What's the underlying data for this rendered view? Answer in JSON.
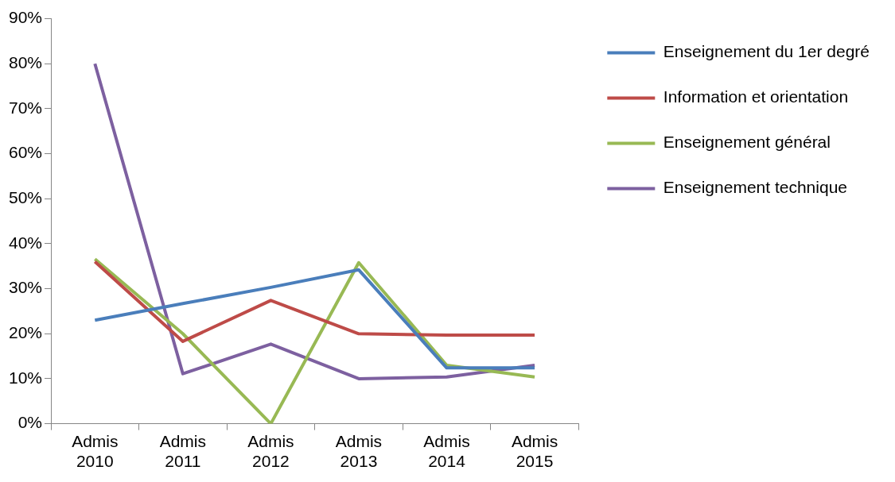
{
  "chart_data": {
    "type": "line",
    "categories": [
      "Admis 2010",
      "Admis 2011",
      "Admis 2012",
      "Admis 2013",
      "Admis 2014",
      "Admis 2015"
    ],
    "series": [
      {
        "name": "Enseignement du 1er degré",
        "color": "#4a7ebb",
        "values": [
          23,
          26.7,
          30.3,
          34.2,
          12.4,
          12.4
        ]
      },
      {
        "name": "Information et orientation",
        "color": "#be4b48",
        "values": [
          36,
          18.3,
          27.4,
          20,
          19.7,
          19.7
        ]
      },
      {
        "name": "Enseignement général",
        "color": "#98b954",
        "values": [
          36.6,
          20,
          0,
          35.8,
          13,
          10.4
        ]
      },
      {
        "name": "Enseignement technique",
        "color": "#7d60a0",
        "values": [
          80,
          11.1,
          17.7,
          10,
          10.4,
          13
        ]
      }
    ],
    "ylim": [
      0,
      90
    ],
    "yticks": [
      {
        "value": 0,
        "label": "0%"
      },
      {
        "value": 10,
        "label": "10%"
      },
      {
        "value": 20,
        "label": "20%"
      },
      {
        "value": 30,
        "label": "30%"
      },
      {
        "value": 40,
        "label": "40%"
      },
      {
        "value": 50,
        "label": "50%"
      },
      {
        "value": 60,
        "label": "60%"
      },
      {
        "value": 70,
        "label": "70%"
      },
      {
        "value": 80,
        "label": "80%"
      },
      {
        "value": 90,
        "label": "90%"
      }
    ],
    "grid": false,
    "legend": "right",
    "marker": "none",
    "line_style": "solid"
  }
}
